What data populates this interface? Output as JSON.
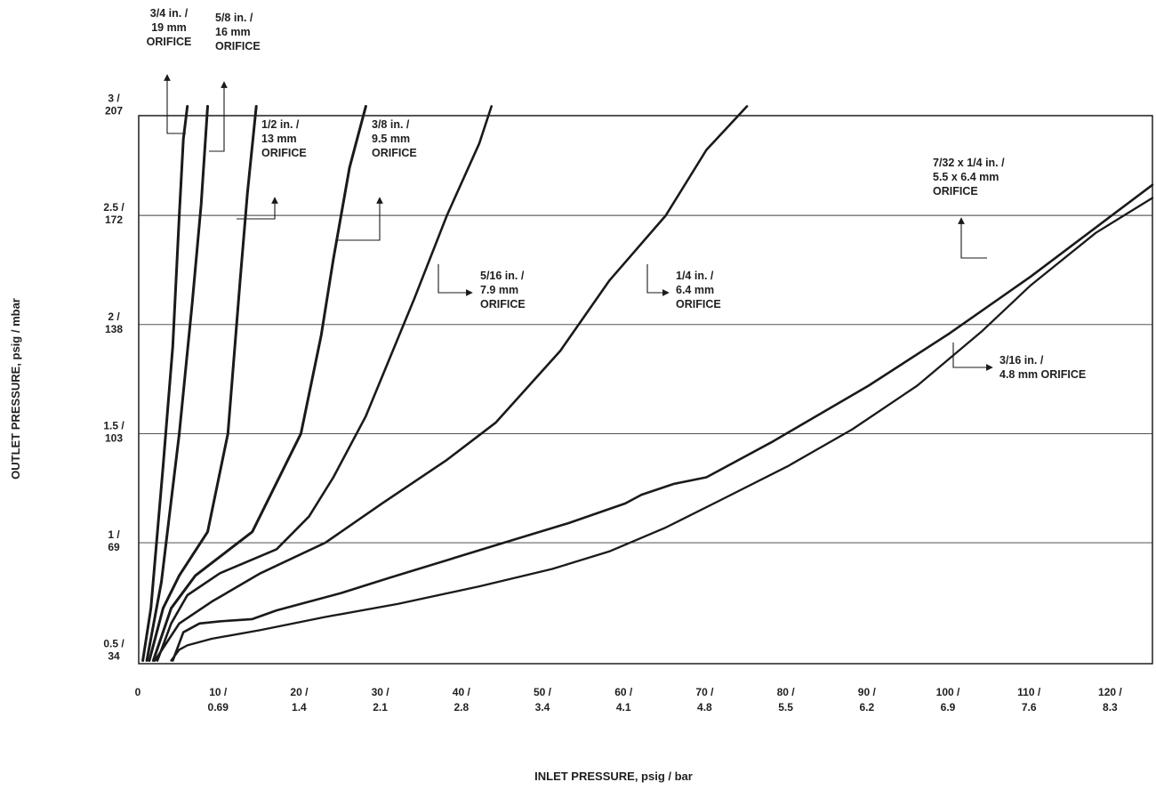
{
  "chart_data": {
    "type": "line",
    "title": "",
    "xlabel": "INLET PRESSURE, psig / bar",
    "ylabel": "OUTLET PRESSURE, psig / mbar",
    "xlim": [
      0,
      125
    ],
    "ylim": [
      0.45,
      3
    ],
    "grid": "horizontal",
    "x_ticks": [
      {
        "value": 0,
        "lines": [
          "0"
        ]
      },
      {
        "value": 10,
        "lines": [
          "10 /",
          "0.69"
        ]
      },
      {
        "value": 20,
        "lines": [
          "20 /",
          "1.4"
        ]
      },
      {
        "value": 30,
        "lines": [
          "30 /",
          "2.1"
        ]
      },
      {
        "value": 40,
        "lines": [
          "40 /",
          "2.8"
        ]
      },
      {
        "value": 50,
        "lines": [
          "50 /",
          "3.4"
        ]
      },
      {
        "value": 60,
        "lines": [
          "60 /",
          "4.1"
        ]
      },
      {
        "value": 70,
        "lines": [
          "70 /",
          "4.8"
        ]
      },
      {
        "value": 80,
        "lines": [
          "80 /",
          "5.5"
        ]
      },
      {
        "value": 90,
        "lines": [
          "90 /",
          "6.2"
        ]
      },
      {
        "value": 100,
        "lines": [
          "100 /",
          "6.9"
        ]
      },
      {
        "value": 110,
        "lines": [
          "110 /",
          "7.6"
        ]
      },
      {
        "value": 120,
        "lines": [
          "120 /",
          "8.3"
        ]
      }
    ],
    "y_ticks": [
      {
        "value": 0.5,
        "lines": [
          "0.5 /",
          "34"
        ]
      },
      {
        "value": 1,
        "lines": [
          "1 /",
          "69"
        ]
      },
      {
        "value": 1.5,
        "lines": [
          "1.5 /",
          "103"
        ]
      },
      {
        "value": 2,
        "lines": [
          "2 /",
          "138"
        ]
      },
      {
        "value": 2.5,
        "lines": [
          "2.5 /",
          "172"
        ]
      },
      {
        "value": 3,
        "lines": [
          "3 /",
          "207"
        ]
      }
    ],
    "series": [
      {
        "name": "3/4 in. / 19 mm ORIFICE",
        "lines": [
          "3/4 in. /",
          "19 mm",
          "ORIFICE"
        ],
        "width": 3,
        "points": [
          [
            0.5,
            0.46
          ],
          [
            1.5,
            0.7
          ],
          [
            3,
            1.35
          ],
          [
            4.2,
            1.9
          ],
          [
            5,
            2.5
          ],
          [
            5.5,
            2.85
          ],
          [
            6,
            3
          ]
        ]
      },
      {
        "name": "5/8 in. / 16 mm ORIFICE",
        "lines": [
          "5/8 in. /",
          "16 mm",
          "ORIFICE"
        ],
        "width": 3,
        "points": [
          [
            1,
            0.46
          ],
          [
            2.8,
            0.82
          ],
          [
            5,
            1.5
          ],
          [
            6.6,
            2.1
          ],
          [
            7.7,
            2.55
          ],
          [
            8.5,
            3
          ]
        ]
      },
      {
        "name": "1/2 in. / 13 mm ORIFICE",
        "lines": [
          "1/2 in. /",
          "13 mm",
          "ORIFICE"
        ],
        "width": 3,
        "points": [
          [
            1.3,
            0.46
          ],
          [
            3,
            0.7
          ],
          [
            5,
            0.85
          ],
          [
            8.5,
            1.05
          ],
          [
            11,
            1.5
          ],
          [
            12.5,
            2.2
          ],
          [
            13.4,
            2.6
          ],
          [
            14.5,
            3
          ]
        ]
      },
      {
        "name": "3/8 in. / 9.5 mm ORIFICE",
        "lines": [
          "3/8 in. /",
          "9.5 mm",
          "ORIFICE"
        ],
        "width": 3,
        "points": [
          [
            1.8,
            0.46
          ],
          [
            4,
            0.7
          ],
          [
            7,
            0.85
          ],
          [
            14,
            1.05
          ],
          [
            20,
            1.5
          ],
          [
            22.5,
            1.95
          ],
          [
            24,
            2.3
          ],
          [
            26,
            2.72
          ],
          [
            28,
            3
          ]
        ]
      },
      {
        "name": "5/16 in. / 7.9 mm ORIFICE",
        "lines": [
          "5/16 in. /",
          "7.9 mm",
          "ORIFICE"
        ],
        "width": 2.6,
        "points": [
          [
            2.3,
            0.46
          ],
          [
            4,
            0.63
          ],
          [
            6,
            0.76
          ],
          [
            10,
            0.86
          ],
          [
            17,
            0.97
          ],
          [
            21,
            1.12
          ],
          [
            24,
            1.3
          ],
          [
            28,
            1.58
          ],
          [
            31,
            1.85
          ],
          [
            34,
            2.12
          ],
          [
            38,
            2.5
          ],
          [
            42,
            2.83
          ],
          [
            43.5,
            3
          ]
        ]
      },
      {
        "name": "1/4 in. / 6.4 mm ORIFICE",
        "lines": [
          "1/4 in. /",
          "6.4 mm",
          "ORIFICE"
        ],
        "width": 2.6,
        "points": [
          [
            2,
            0.46
          ],
          [
            5,
            0.63
          ],
          [
            9,
            0.73
          ],
          [
            15,
            0.86
          ],
          [
            23,
            1.0
          ],
          [
            30,
            1.18
          ],
          [
            38,
            1.38
          ],
          [
            44,
            1.55
          ],
          [
            52,
            1.88
          ],
          [
            58,
            2.2
          ],
          [
            65,
            2.5
          ],
          [
            70,
            2.8
          ],
          [
            75,
            3
          ]
        ]
      },
      {
        "name": "7/32 x 1/4 in. / 5.5 x 6.4 mm ORIFICE",
        "lines": [
          "7/32 x 1/4 in. /",
          "5.5 x 6.4 mm",
          "ORIFICE"
        ],
        "width": 2.6,
        "points": [
          [
            4.2,
            0.46
          ],
          [
            4.8,
            0.52
          ],
          [
            5.5,
            0.59
          ],
          [
            7.5,
            0.63
          ],
          [
            10,
            0.64
          ],
          [
            14,
            0.65
          ],
          [
            17,
            0.69
          ],
          [
            20,
            0.72
          ],
          [
            25,
            0.77
          ],
          [
            31,
            0.84
          ],
          [
            38,
            0.92
          ],
          [
            45,
            1.0
          ],
          [
            53,
            1.09
          ],
          [
            60,
            1.18
          ],
          [
            62,
            1.22
          ],
          [
            66,
            1.27
          ],
          [
            70,
            1.3
          ],
          [
            71,
            1.32
          ],
          [
            78,
            1.46
          ],
          [
            90,
            1.72
          ],
          [
            100,
            1.96
          ],
          [
            110,
            2.22
          ],
          [
            120,
            2.5
          ],
          [
            125,
            2.64
          ]
        ]
      },
      {
        "name": "3/16 in. / 4.8 mm ORIFICE",
        "lines": [
          "3/16 in. /",
          "4.8 mm ORIFICE"
        ],
        "width": 2.3,
        "points": [
          [
            4,
            0.46
          ],
          [
            5,
            0.51
          ],
          [
            6,
            0.53
          ],
          [
            9,
            0.56
          ],
          [
            15,
            0.6
          ],
          [
            23,
            0.66
          ],
          [
            32,
            0.72
          ],
          [
            42,
            0.8
          ],
          [
            51,
            0.88
          ],
          [
            58,
            0.96
          ],
          [
            65,
            1.07
          ],
          [
            72,
            1.2
          ],
          [
            80,
            1.35
          ],
          [
            88,
            1.52
          ],
          [
            96,
            1.72
          ],
          [
            104,
            1.97
          ],
          [
            110,
            2.18
          ],
          [
            118,
            2.42
          ],
          [
            125,
            2.58
          ]
        ]
      }
    ]
  }
}
